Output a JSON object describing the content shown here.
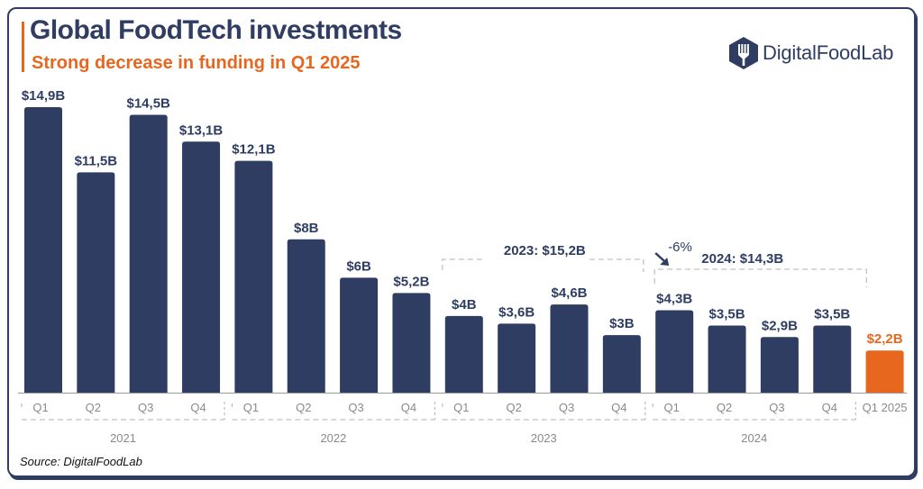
{
  "header": {
    "title": "Global FoodTech investments",
    "subtitle": "Strong decrease in funding in Q1 2025"
  },
  "logo": {
    "text": "DigitalFoodLab",
    "icon": "fork-hexagon-icon"
  },
  "source": "Source: DigitalFoodLab",
  "colors": {
    "primary": "#2f3d63",
    "accent": "#e8671f",
    "axis_text": "#8a8a8a"
  },
  "chart_data": {
    "type": "bar",
    "title": "Global FoodTech investments",
    "subtitle": "Strong decrease in funding in Q1 2025",
    "xlabel": "",
    "ylabel": "",
    "unit": "$B",
    "ylim": [
      0,
      15
    ],
    "grid": false,
    "legend": "none",
    "categories": [
      "Q1",
      "Q2",
      "Q3",
      "Q4",
      "Q1",
      "Q2",
      "Q3",
      "Q4",
      "Q1",
      "Q2",
      "Q3",
      "Q4",
      "Q1",
      "Q2",
      "Q3",
      "Q4",
      "Q1 2025"
    ],
    "years": [
      "2021",
      "2021",
      "2021",
      "2021",
      "2022",
      "2022",
      "2022",
      "2022",
      "2023",
      "2023",
      "2023",
      "2023",
      "2024",
      "2024",
      "2024",
      "2024",
      "2025"
    ],
    "values": [
      14.9,
      11.5,
      14.5,
      13.1,
      12.1,
      8,
      6,
      5.2,
      4,
      3.6,
      4.6,
      3,
      4.3,
      3.5,
      2.9,
      3.5,
      2.2
    ],
    "labels": [
      "$14,9B",
      "$11,5B",
      "$14,5B",
      "$13,1B",
      "$12,1B",
      "$8B",
      "$6B",
      "$5,2B",
      "$4B",
      "$3,6B",
      "$4,6B",
      "$3B",
      "$4,3B",
      "$3,5B",
      "$2,9B",
      "$3,5B",
      "$2,2B"
    ],
    "highlight_index": 16,
    "year_groups": [
      {
        "label": "2021",
        "start": 0,
        "end": 3
      },
      {
        "label": "2022",
        "start": 4,
        "end": 7
      },
      {
        "label": "2023",
        "start": 8,
        "end": 11
      },
      {
        "label": "2024",
        "start": 12,
        "end": 15
      }
    ],
    "annotations": [
      {
        "text": "2023: $15,2B",
        "start": 8,
        "end": 11
      },
      {
        "text": "2024: $14,3B",
        "start": 12,
        "end": 15
      },
      {
        "text": "-6%",
        "type": "change-arrow"
      }
    ]
  }
}
